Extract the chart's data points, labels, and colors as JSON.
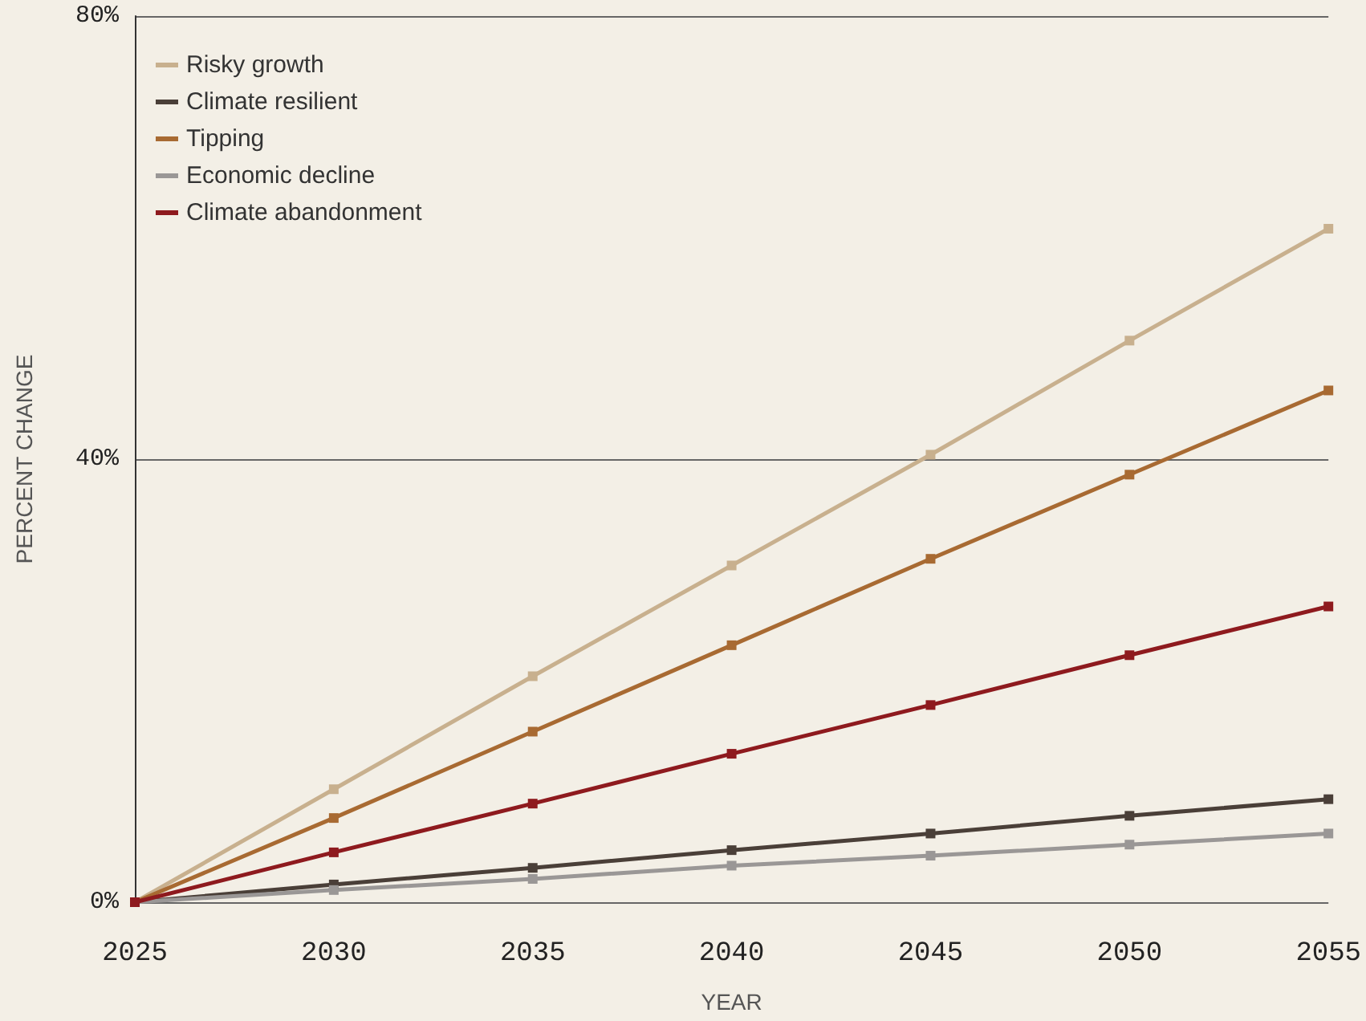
{
  "chart_data": {
    "type": "line",
    "xlabel": "YEAR",
    "ylabel": "PERCENT CHANGE",
    "x": [
      2025,
      2030,
      2035,
      2040,
      2045,
      2050,
      2055
    ],
    "series": [
      {
        "name": "Risky growth",
        "color": "#c8b08e",
        "values": [
          0,
          10.2,
          20.4,
          30.4,
          40.4,
          50.7,
          60.8
        ]
      },
      {
        "name": "Climate resilient",
        "color": "#4a3f38",
        "values": [
          0,
          1.6,
          3.1,
          4.7,
          6.2,
          7.8,
          9.3
        ]
      },
      {
        "name": "Tipping",
        "color": "#a86a32",
        "values": [
          0,
          7.6,
          15.4,
          23.2,
          31,
          38.6,
          46.2
        ]
      },
      {
        "name": "Economic decline",
        "color": "#9a9796",
        "values": [
          0,
          1.1,
          2.1,
          3.3,
          4.2,
          5.2,
          6.2
        ]
      },
      {
        "name": "Climate abandonment",
        "color": "#8e1a1e",
        "values": [
          0,
          4.5,
          8.9,
          13.4,
          17.8,
          22.3,
          26.7
        ]
      }
    ],
    "xlim": [
      2025,
      2055
    ],
    "xticks": [
      2025,
      2030,
      2035,
      2040,
      2045,
      2050,
      2055
    ],
    "ylim": [
      0,
      80
    ],
    "yticks": [
      {
        "value": 0,
        "label": "0%"
      },
      {
        "value": 40,
        "label": "40%"
      },
      {
        "value": 80,
        "label": "80%"
      }
    ],
    "grid": "y",
    "legend": "top left",
    "marker": "square",
    "line_style": "solid"
  }
}
